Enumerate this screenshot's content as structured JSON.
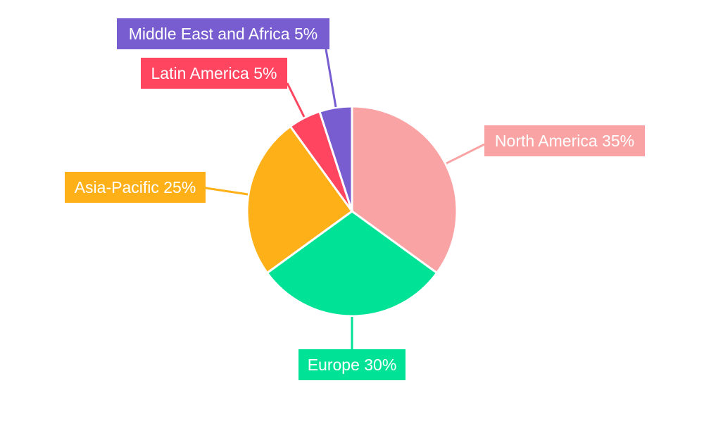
{
  "chart_data": {
    "type": "pie",
    "title": "",
    "categories": [
      "North America",
      "Europe",
      "Asia-Pacific",
      "Latin America",
      "Middle East and Africa"
    ],
    "values": [
      35,
      30,
      25,
      5,
      5
    ],
    "labels": [
      "North America 35%",
      "Europe 30%",
      "Asia-Pacific 25%",
      "Latin America 5%",
      "Middle East and Africa 5%"
    ],
    "colors": [
      "#F9A3A4",
      "#00E396",
      "#FEB019",
      "#FF4560",
      "#775DD0"
    ],
    "start_angle": "top, clockwise",
    "legend": "none"
  }
}
